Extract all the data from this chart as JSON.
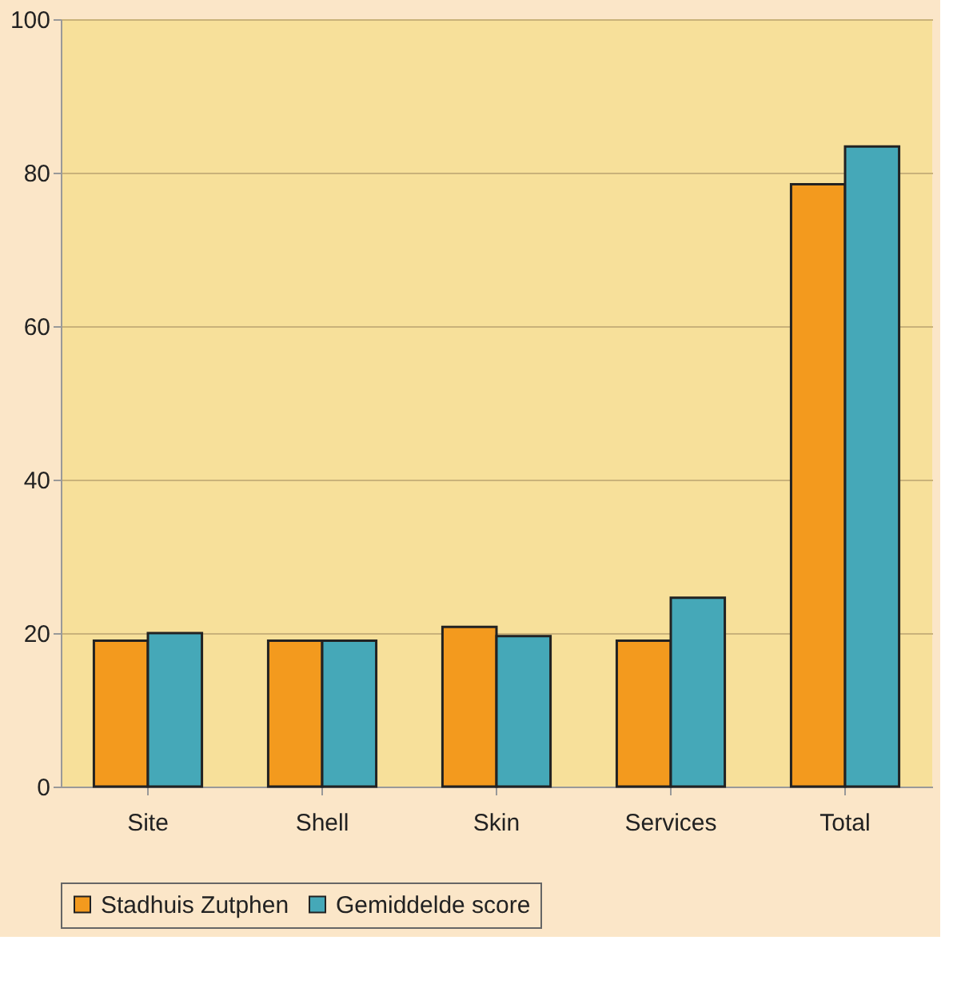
{
  "chart_data": {
    "type": "bar",
    "categories": [
      "Site",
      "Shell",
      "Skin",
      "Services",
      "Total"
    ],
    "series": [
      {
        "name": "Stadhuis Zutphen",
        "color": "#f39a1e",
        "values": [
          19,
          19,
          20.8,
          19,
          78.5
        ]
      },
      {
        "name": "Gemiddelde score",
        "color": "#45a8b8",
        "values": [
          20,
          19,
          19.6,
          24.6,
          83.4
        ]
      }
    ],
    "ylim": [
      0,
      100
    ],
    "yticks": [
      0,
      20,
      40,
      60,
      80,
      100
    ],
    "grid": "y",
    "legend": "bottom"
  }
}
